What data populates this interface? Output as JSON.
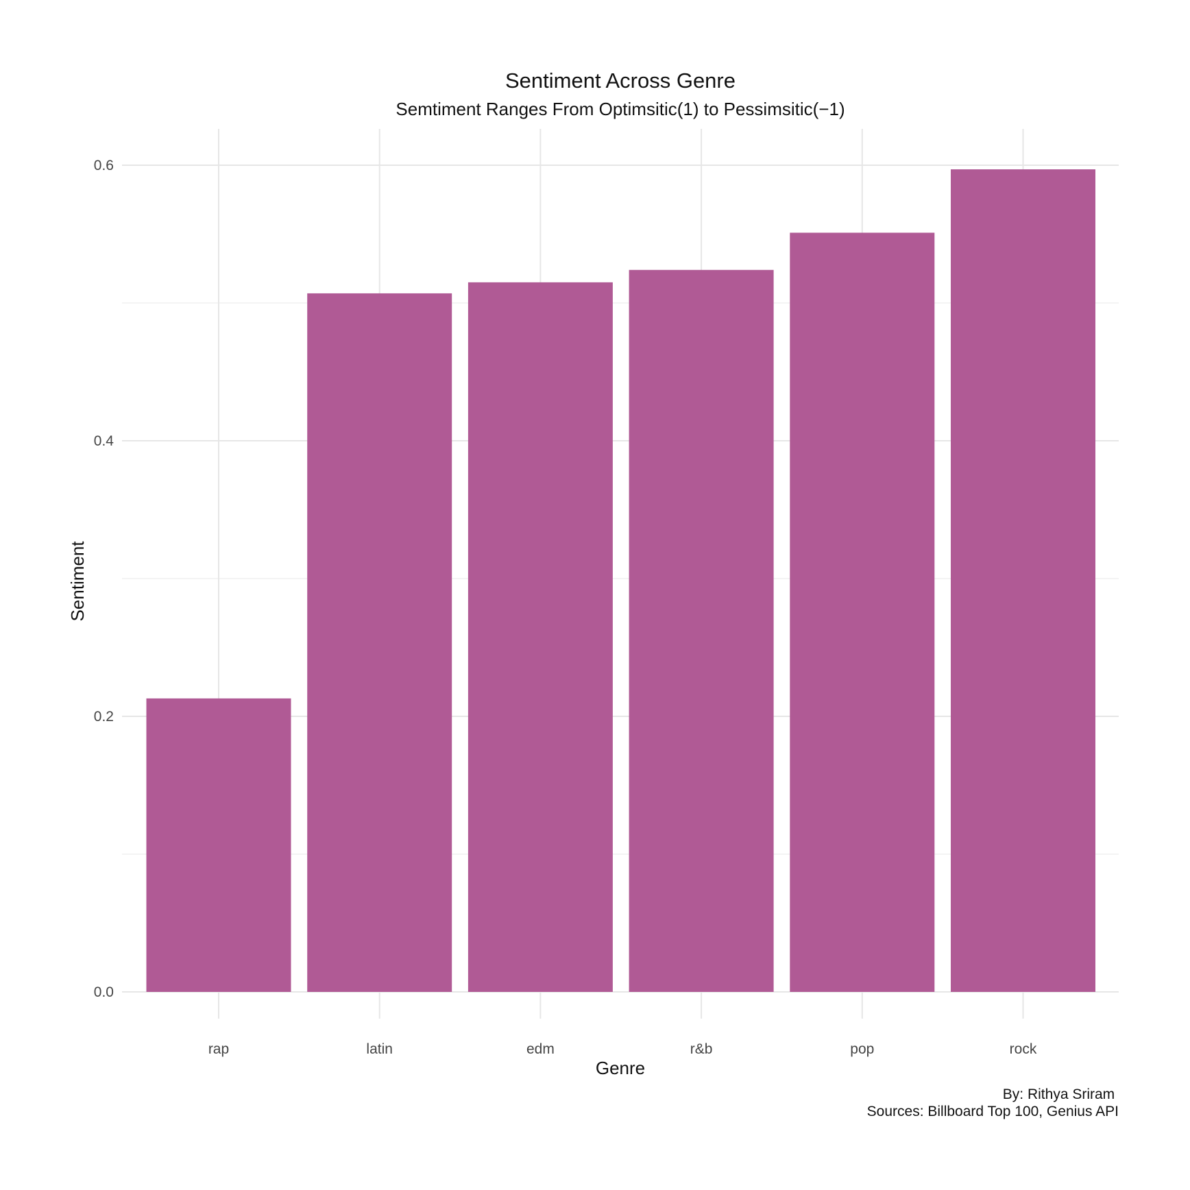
{
  "chart_data": {
    "type": "bar",
    "title": "Sentiment Across Genre",
    "subtitle": "Semtiment Ranges From Optimsitic(1) to Pessimsitic(−1)",
    "xlabel": "Genre",
    "ylabel": "Sentiment",
    "categories": [
      "rap",
      "latin",
      "edm",
      "r&b",
      "pop",
      "rock"
    ],
    "values": [
      0.213,
      0.507,
      0.515,
      0.524,
      0.551,
      0.597
    ],
    "ylim": [
      0,
      0.6
    ],
    "y_ticks": [
      0.0,
      0.2,
      0.4,
      0.6
    ],
    "y_tick_labels": [
      "0.0",
      "0.2",
      "0.4",
      "0.6"
    ],
    "grid": true,
    "bar_color": "#b05a95",
    "caption_lines": [
      "By: Rithya Sriram ",
      "Sources: Billboard Top 100, Genius API"
    ]
  }
}
